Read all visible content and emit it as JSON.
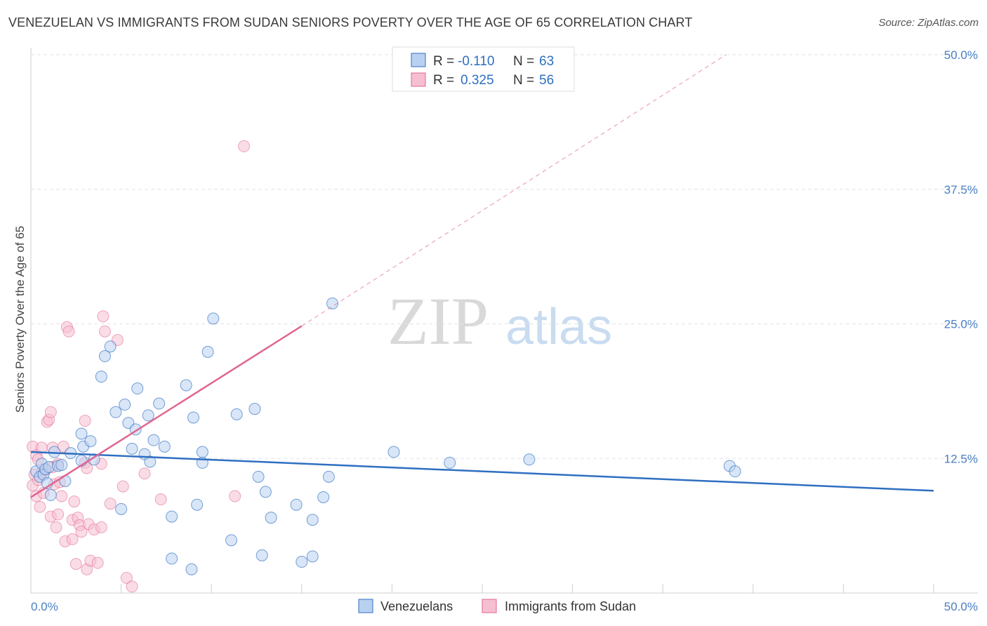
{
  "title": "VENEZUELAN VS IMMIGRANTS FROM SUDAN SENIORS POVERTY OVER THE AGE OF 65 CORRELATION CHART",
  "source": "Source: ZipAtlas.com",
  "watermark": {
    "zip": "ZIP",
    "atlas": "atlas"
  },
  "colors": {
    "blue": "#2f6fc1",
    "blue_fill": "#b9d1f0",
    "pink": "#e0668f",
    "pink_fill": "#f6bfd1",
    "axis_text": "#4a7fc4",
    "grid": "#e3e3e3"
  },
  "legend": {
    "rows": [
      {
        "r_label": "R =",
        "r_value": "-0.110",
        "n_label": "N =",
        "n_value": "63"
      },
      {
        "r_label": "R =",
        "r_value": "0.325",
        "n_label": "N =",
        "n_value": "56"
      }
    ]
  },
  "bottom_legend": [
    "Venezuelans",
    "Immigrants from Sudan"
  ],
  "chart_data": {
    "type": "scatter",
    "title": "VENEZUELAN VS IMMIGRANTS FROM SUDAN SENIORS POVERTY OVER THE AGE OF 65 CORRELATION CHART",
    "xlabel": "",
    "ylabel": "Seniors Poverty Over the Age of 65",
    "xlim": [
      0,
      50
    ],
    "ylim": [
      0,
      50
    ],
    "x_tick_labels": [
      "0.0%",
      "50.0%"
    ],
    "y_tick_labels": [
      "12.5%",
      "25.0%",
      "37.5%",
      "50.0%"
    ],
    "y_ticks": [
      12.5,
      25.0,
      37.5,
      50.0
    ],
    "series": [
      {
        "name": "Venezuelans",
        "r": -0.11,
        "n": 63,
        "trend": {
          "x": [
            0,
            50
          ],
          "y": [
            13.1,
            9.5
          ],
          "style": "solid"
        },
        "points": [
          [
            0.3,
            11.3
          ],
          [
            0.5,
            10.8
          ],
          [
            0.6,
            12.0
          ],
          [
            0.7,
            11.0
          ],
          [
            0.8,
            11.5
          ],
          [
            0.9,
            10.2
          ],
          [
            1.0,
            11.7
          ],
          [
            1.1,
            9.1
          ],
          [
            1.3,
            13.1
          ],
          [
            1.5,
            11.8
          ],
          [
            1.7,
            11.9
          ],
          [
            1.9,
            10.4
          ],
          [
            2.2,
            13.0
          ],
          [
            2.8,
            12.3
          ],
          [
            2.8,
            14.8
          ],
          [
            2.9,
            13.6
          ],
          [
            3.3,
            14.1
          ],
          [
            3.5,
            12.4
          ],
          [
            3.9,
            20.1
          ],
          [
            4.1,
            22.0
          ],
          [
            4.4,
            22.9
          ],
          [
            4.7,
            16.8
          ],
          [
            5.0,
            7.8
          ],
          [
            5.2,
            17.5
          ],
          [
            5.4,
            15.8
          ],
          [
            5.6,
            13.4
          ],
          [
            5.8,
            15.2
          ],
          [
            5.9,
            19.0
          ],
          [
            6.3,
            12.9
          ],
          [
            6.5,
            16.5
          ],
          [
            6.6,
            12.2
          ],
          [
            6.8,
            14.2
          ],
          [
            7.1,
            17.6
          ],
          [
            7.4,
            13.6
          ],
          [
            7.8,
            7.1
          ],
          [
            7.8,
            3.2
          ],
          [
            8.6,
            19.3
          ],
          [
            8.9,
            2.2
          ],
          [
            9.0,
            16.3
          ],
          [
            9.2,
            8.2
          ],
          [
            9.5,
            12.1
          ],
          [
            9.5,
            13.1
          ],
          [
            9.8,
            22.4
          ],
          [
            10.1,
            25.5
          ],
          [
            11.1,
            4.9
          ],
          [
            11.4,
            16.6
          ],
          [
            12.4,
            17.1
          ],
          [
            12.6,
            10.8
          ],
          [
            12.8,
            3.5
          ],
          [
            13.0,
            9.4
          ],
          [
            13.3,
            7.0
          ],
          [
            14.7,
            8.2
          ],
          [
            15.0,
            2.9
          ],
          [
            15.6,
            6.8
          ],
          [
            15.6,
            3.4
          ],
          [
            16.2,
            8.9
          ],
          [
            16.5,
            10.8
          ],
          [
            16.7,
            26.9
          ],
          [
            20.1,
            13.1
          ],
          [
            23.2,
            12.1
          ],
          [
            27.6,
            12.4
          ],
          [
            38.7,
            11.8
          ],
          [
            39.0,
            11.3
          ]
        ]
      },
      {
        "name": "Immigrants from Sudan",
        "r": 0.325,
        "n": 56,
        "trend": {
          "x": [
            0,
            15
          ],
          "y": [
            8.9,
            24.8
          ],
          "style": "solid",
          "extended": {
            "x": [
              15,
              38.5
            ],
            "y": [
              24.8,
              50.0
            ],
            "style": "dashed"
          }
        },
        "points": [
          [
            0.1,
            13.6
          ],
          [
            0.1,
            10.0
          ],
          [
            0.2,
            11.0
          ],
          [
            0.3,
            12.8
          ],
          [
            0.3,
            9.0
          ],
          [
            0.4,
            10.5
          ],
          [
            0.5,
            8.0
          ],
          [
            0.6,
            13.5
          ],
          [
            0.7,
            9.3
          ],
          [
            0.8,
            11.4
          ],
          [
            0.9,
            15.9
          ],
          [
            1.0,
            16.1
          ],
          [
            1.1,
            16.8
          ],
          [
            1.1,
            7.1
          ],
          [
            1.2,
            11.7
          ],
          [
            1.2,
            13.5
          ],
          [
            1.3,
            10.1
          ],
          [
            1.4,
            6.1
          ],
          [
            1.5,
            7.3
          ],
          [
            1.6,
            10.3
          ],
          [
            1.7,
            9.0
          ],
          [
            1.8,
            13.6
          ],
          [
            1.9,
            4.8
          ],
          [
            2.0,
            24.7
          ],
          [
            2.1,
            24.3
          ],
          [
            2.3,
            5.0
          ],
          [
            2.3,
            6.8
          ],
          [
            2.4,
            8.5
          ],
          [
            2.5,
            2.7
          ],
          [
            2.6,
            7.0
          ],
          [
            2.7,
            6.3
          ],
          [
            2.8,
            5.7
          ],
          [
            3.0,
            12.1
          ],
          [
            3.0,
            16.0
          ],
          [
            3.1,
            11.6
          ],
          [
            3.1,
            2.2
          ],
          [
            3.2,
            6.4
          ],
          [
            3.3,
            3.0
          ],
          [
            3.5,
            5.9
          ],
          [
            3.7,
            2.8
          ],
          [
            3.9,
            6.1
          ],
          [
            3.9,
            12.0
          ],
          [
            4.0,
            25.7
          ],
          [
            4.1,
            24.3
          ],
          [
            4.4,
            8.3
          ],
          [
            4.8,
            23.5
          ],
          [
            5.1,
            9.9
          ],
          [
            5.3,
            1.4
          ],
          [
            5.6,
            0.6
          ],
          [
            6.3,
            11.1
          ],
          [
            7.2,
            8.7
          ],
          [
            11.3,
            9.0
          ],
          [
            11.8,
            41.5
          ],
          [
            0.4,
            12.4
          ],
          [
            0.6,
            11.2
          ],
          [
            1.5,
            12.0
          ]
        ]
      }
    ]
  }
}
